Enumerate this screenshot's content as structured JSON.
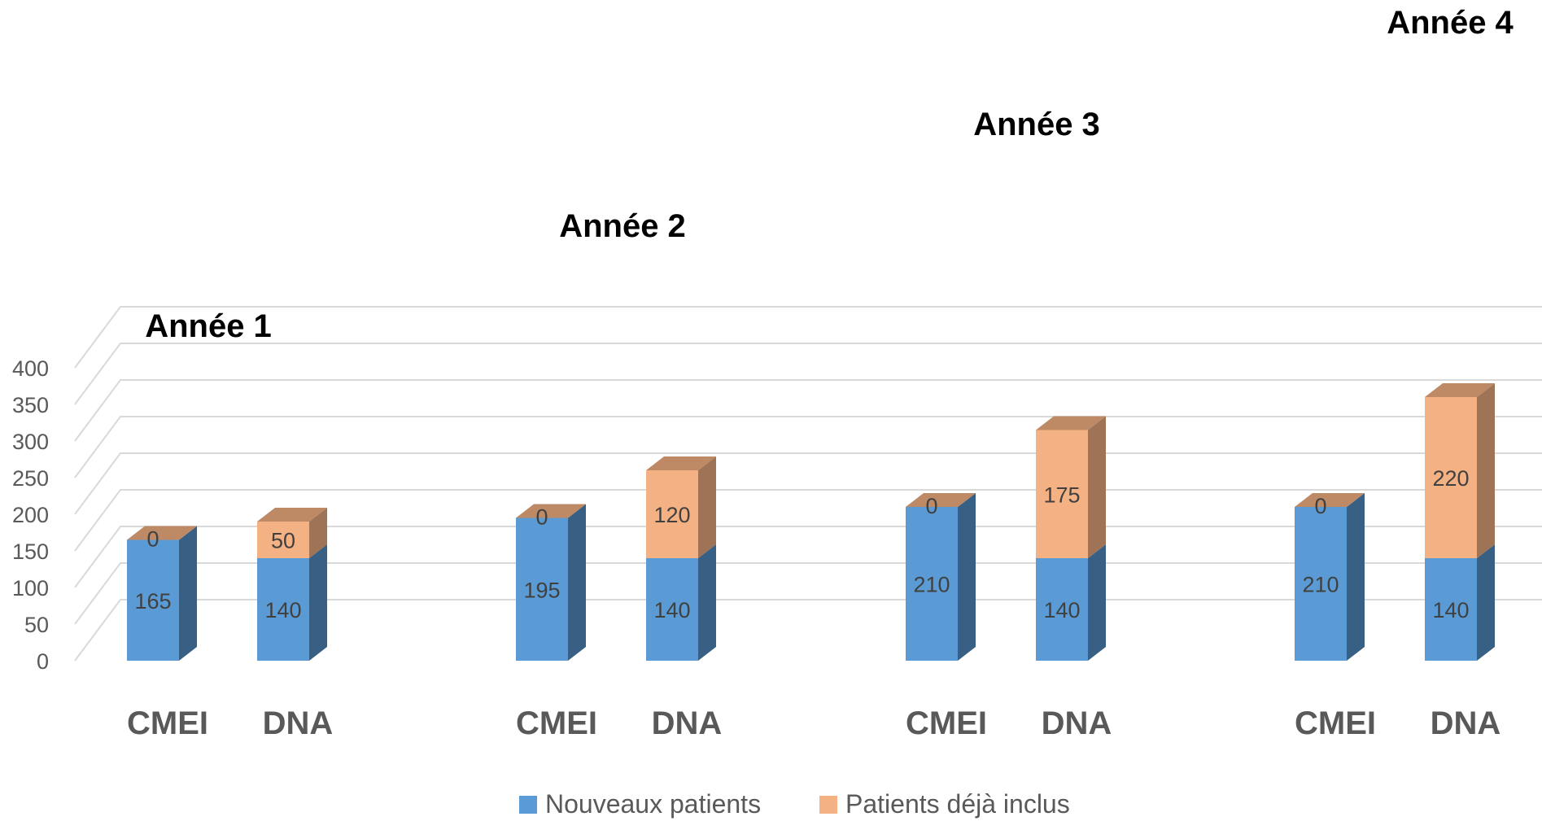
{
  "chart_data": {
    "type": "bar",
    "stacked": true,
    "three_d": true,
    "ylim": [
      0,
      400
    ],
    "yticks": [
      0,
      50,
      100,
      150,
      200,
      250,
      300,
      350,
      400
    ],
    "grid": true,
    "legend_position": "bottom",
    "groups": [
      {
        "label": "Année 1",
        "categories": [
          "CMEI",
          "DNA"
        ]
      },
      {
        "label": "Année 2",
        "categories": [
          "CMEI",
          "DNA"
        ]
      },
      {
        "label": "Année 3",
        "categories": [
          "CMEI",
          "DNA"
        ]
      },
      {
        "label": "Année 4",
        "categories": [
          "CMEI",
          "DNA"
        ]
      }
    ],
    "series": [
      {
        "name": "Nouveaux patients",
        "color": "#5B9BD5",
        "values": [
          165,
          140,
          195,
          140,
          210,
          140,
          210,
          140
        ]
      },
      {
        "name": "Patients déjà inclus",
        "color": "#F4B183",
        "values": [
          0,
          50,
          0,
          120,
          0,
          175,
          0,
          220
        ]
      }
    ]
  }
}
